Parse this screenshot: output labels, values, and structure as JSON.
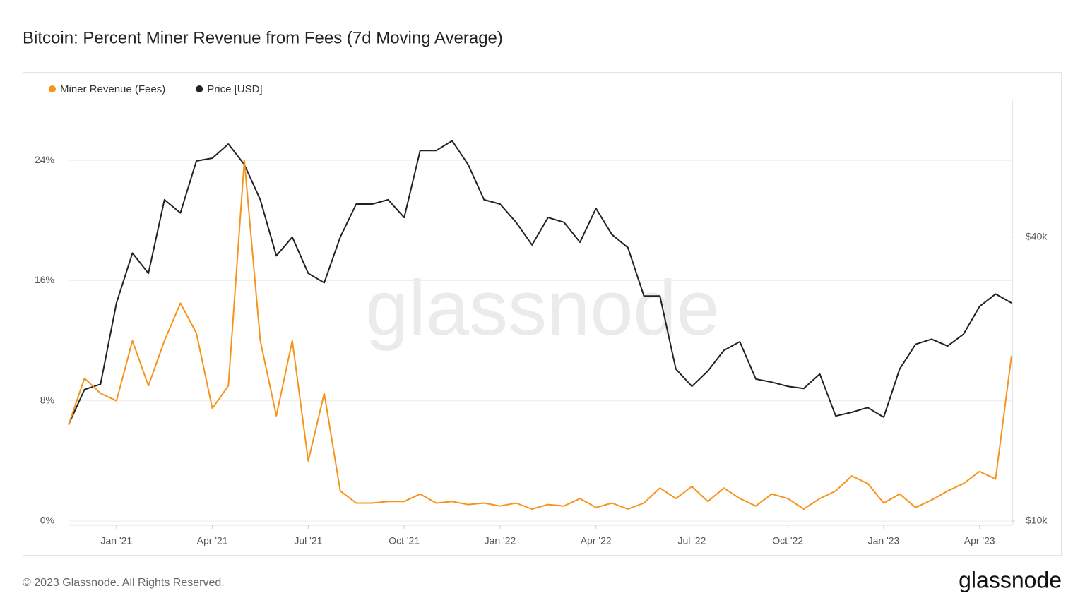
{
  "chart_data": {
    "type": "line",
    "title": "Bitcoin: Percent Miner Revenue from Fees (7d Moving Average)",
    "watermark": "glassnode",
    "categories": [
      null,
      null,
      null,
      "Jan '21",
      null,
      null,
      null,
      null,
      null,
      "Apr '21",
      null,
      null,
      null,
      null,
      null,
      "Jul '21",
      null,
      null,
      null,
      null,
      null,
      "Oct '21",
      null,
      null,
      null,
      null,
      null,
      "Jan '22",
      null,
      null,
      null,
      null,
      null,
      "Apr '22",
      null,
      null,
      null,
      null,
      null,
      "Jul '22",
      null,
      null,
      null,
      null,
      null,
      "Oct '22",
      null,
      null,
      null,
      null,
      null,
      "Jan '23",
      null,
      null,
      null,
      null,
      null,
      "Apr '23",
      null,
      null
    ],
    "series": [
      {
        "name": "Miner Revenue (Fees)",
        "color": "#f7931a",
        "axis": "y",
        "values": [
          6.4,
          9.5,
          8.5,
          8,
          12,
          9,
          12,
          14.5,
          12.5,
          7.5,
          9,
          24,
          12,
          7,
          12,
          4,
          8.5,
          2,
          1.2,
          1.2,
          1.3,
          1.3,
          1.8,
          1.2,
          1.3,
          1.1,
          1.2,
          1.0,
          1.2,
          0.8,
          1.1,
          1.0,
          1.5,
          0.9,
          1.2,
          0.8,
          1.2,
          2.2,
          1.5,
          2.3,
          1.3,
          2.2,
          1.5,
          1.0,
          1.8,
          1.5,
          0.8,
          1.5,
          2.0,
          3.0,
          2.5,
          1.2,
          1.8,
          0.9,
          1.4,
          2.0,
          2.5,
          3.3,
          2.8,
          11
        ]
      },
      {
        "name": "Price [USD]",
        "color": "#222222",
        "axis": "y2",
        "values": [
          16000,
          19000,
          19500,
          29000,
          37000,
          33500,
          48000,
          45000,
          58000,
          58800,
          63000,
          57000,
          48000,
          36500,
          40000,
          33500,
          32000,
          40000,
          47000,
          47000,
          48000,
          44000,
          61000,
          61000,
          64000,
          57000,
          48000,
          47000,
          43000,
          38500,
          44000,
          43000,
          39000,
          46000,
          40500,
          38000,
          30000,
          30000,
          21000,
          19300,
          20800,
          23000,
          24000,
          20000,
          19700,
          19300,
          19100,
          20500,
          16700,
          17000,
          17400,
          16600,
          21000,
          23700,
          24300,
          23500,
          24900,
          28500,
          30300,
          29000
        ]
      }
    ],
    "ylim": [
      0,
      28
    ],
    "yticks": [
      {
        "value": 0,
        "label": "0%"
      },
      {
        "value": 8,
        "label": "8%"
      },
      {
        "value": 16,
        "label": "16%"
      },
      {
        "value": 24,
        "label": "24%"
      }
    ],
    "y2lim": [
      10000,
      78000
    ],
    "y2scale": "log",
    "y2ticks": [
      {
        "value": 10000,
        "label": "$10k"
      },
      {
        "value": 40000,
        "label": "$40k"
      }
    ],
    "grid": true,
    "legend": "top-left"
  },
  "footer": "© 2023 Glassnode. All Rights Reserved.",
  "logo": "glassnode"
}
